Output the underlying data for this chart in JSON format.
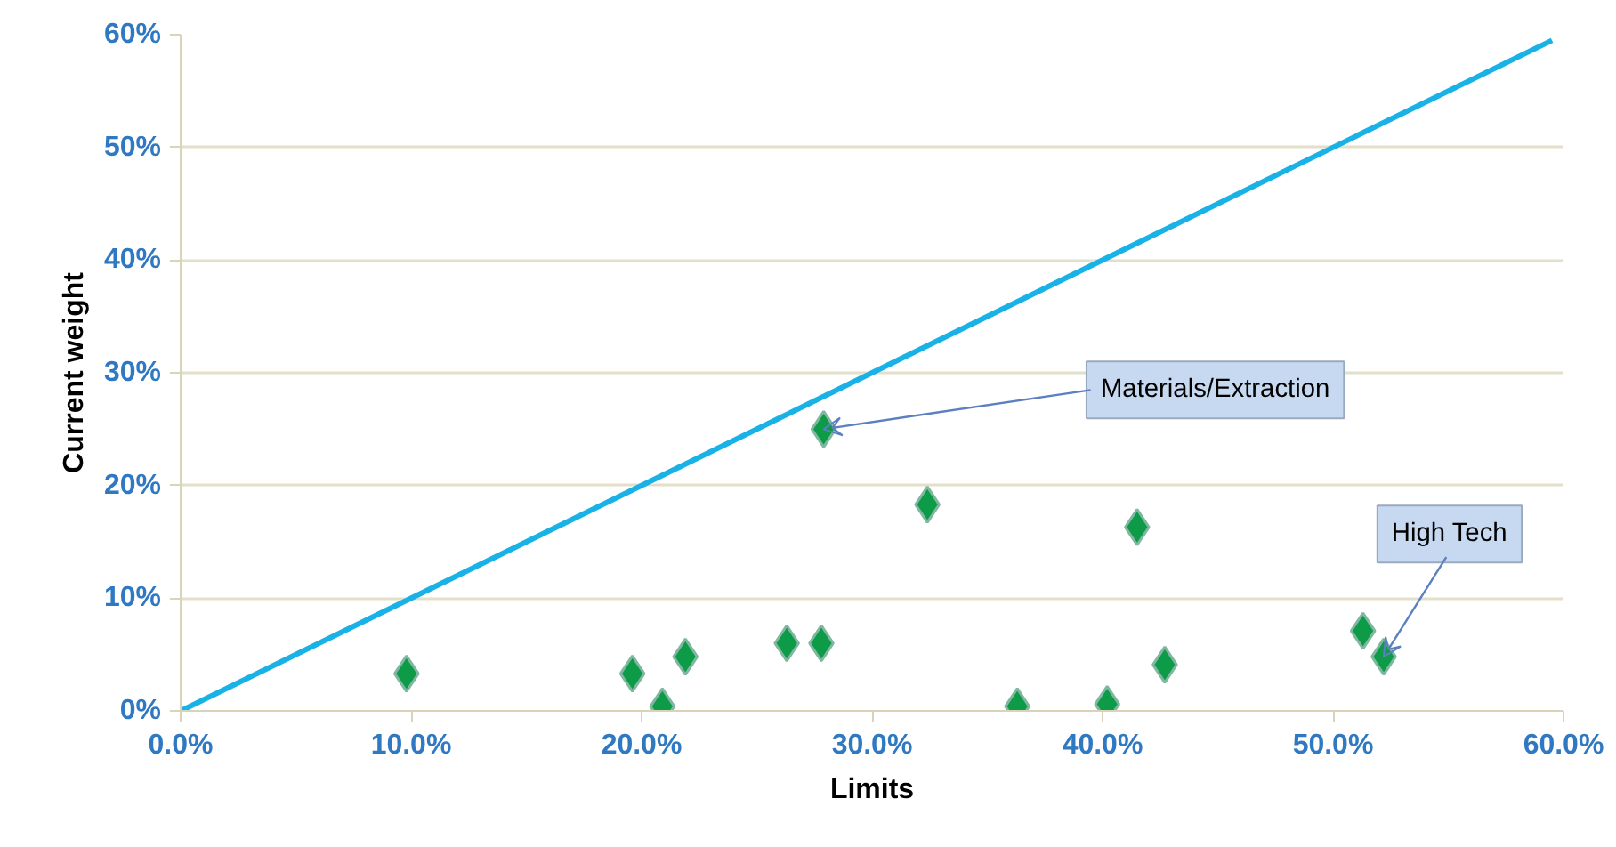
{
  "chart_data": {
    "type": "scatter",
    "xlabel": "Limits",
    "ylabel": "Current weight",
    "xlim": [
      0,
      60
    ],
    "ylim": [
      0,
      60
    ],
    "xticks": [
      {
        "value": 0,
        "label": "0.0%"
      },
      {
        "value": 10,
        "label": "10.0%"
      },
      {
        "value": 20,
        "label": "20.0%"
      },
      {
        "value": 30,
        "label": "30.0%"
      },
      {
        "value": 40,
        "label": "40.0%"
      },
      {
        "value": 50,
        "label": "50.0%"
      },
      {
        "value": 60,
        "label": "60.0%"
      }
    ],
    "yticks": [
      {
        "value": 0,
        "label": "0%"
      },
      {
        "value": 10,
        "label": "10%"
      },
      {
        "value": 20,
        "label": "20%"
      },
      {
        "value": 30,
        "label": "30%"
      },
      {
        "value": 40,
        "label": "40%"
      },
      {
        "value": 50,
        "label": "50%"
      },
      {
        "value": 60,
        "label": "60%"
      }
    ],
    "grid": "y",
    "series": [
      {
        "type": "line",
        "color": "#19b2e6",
        "x": [
          0,
          59.5
        ],
        "values": [
          0,
          59.5
        ]
      },
      {
        "color": "#0d9b48",
        "marker": "diamond",
        "x": [
          9.8,
          19.6,
          20.9,
          21.9,
          26.3,
          27.8,
          27.9,
          32.4,
          41.5,
          36.3,
          40.2,
          42.7,
          51.3,
          52.2
        ],
        "values": [
          3.3,
          3.3,
          0.4,
          4.8,
          6.0,
          6.0,
          25.0,
          18.3,
          16.3,
          0.4,
          0.6,
          4.1,
          7.1,
          4.8
        ]
      }
    ],
    "annotations": [
      {
        "text": "Materials/Extraction",
        "x": 27.9,
        "y": 25.0
      },
      {
        "text": "High Tech",
        "x": 52.2,
        "y": 4.8
      }
    ]
  }
}
